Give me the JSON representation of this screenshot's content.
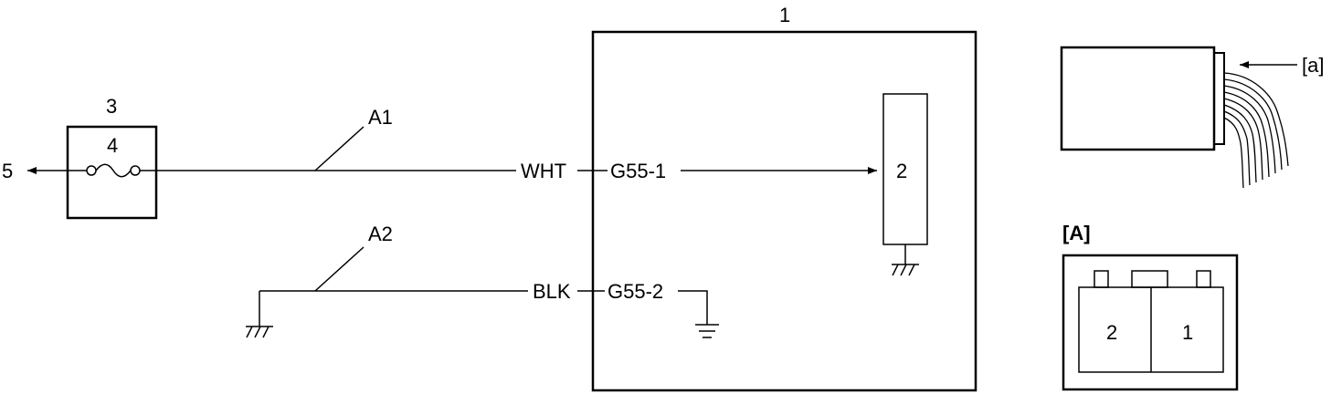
{
  "diagram": {
    "ref_module": "1",
    "ref_component": "2",
    "ref_fuse_box": "3",
    "ref_fuse": "4",
    "ref_source": "5",
    "wire_a1": "A1",
    "wire_a2": "A2",
    "wire_a1_color": "WHT",
    "wire_a2_color": "BLK",
    "pin_a1": "G55-1",
    "pin_a2": "G55-2",
    "view_arrow_label": "[a]",
    "connector_view_title": "[A]",
    "connector_pin_left": "2",
    "connector_pin_right": "1"
  }
}
